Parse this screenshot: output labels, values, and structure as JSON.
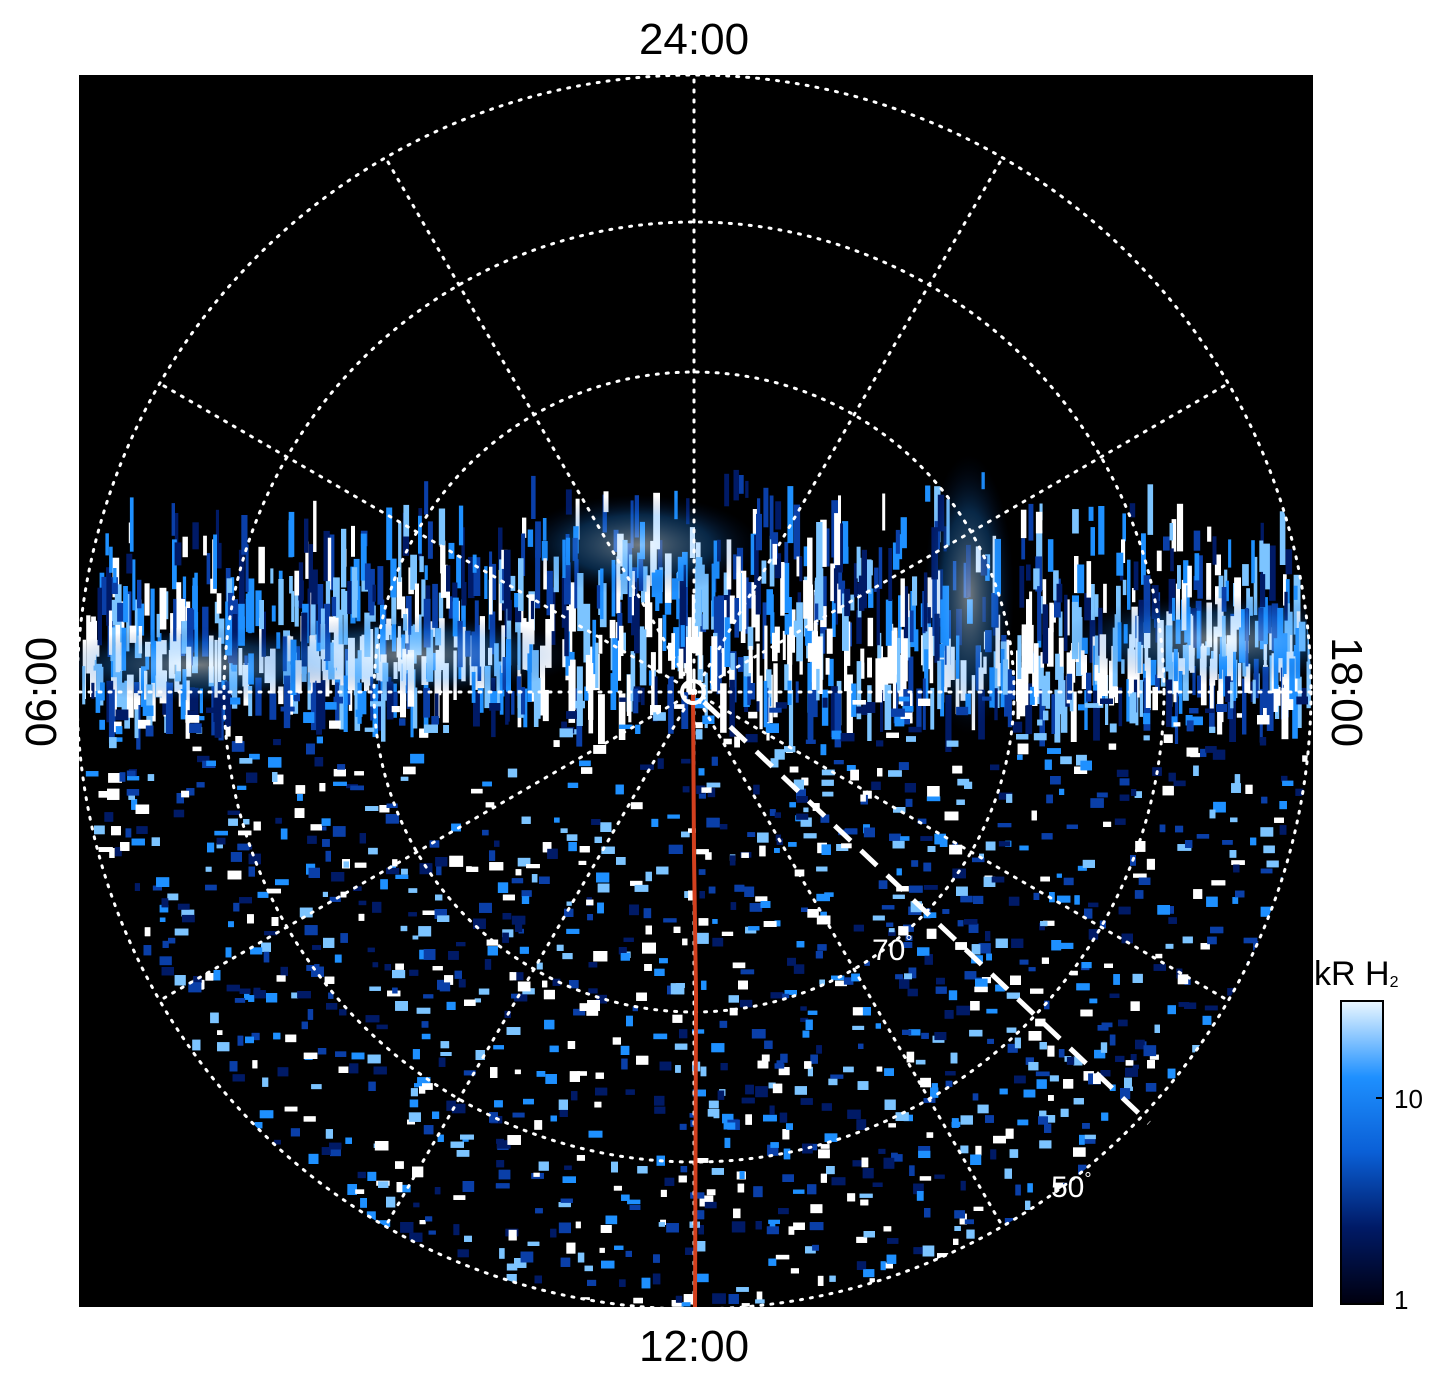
{
  "local_time_labels": {
    "top": "24:00",
    "bottom": "12:00",
    "left": "06:00",
    "right": "18:00"
  },
  "latitude_labels": {
    "inner": "70",
    "outer": "50",
    "degree_symbol": "°"
  },
  "colorbar": {
    "title_main": "kR H",
    "title_sub": "2",
    "ticks": [
      "10",
      "1"
    ],
    "scale": "log",
    "colors": [
      "#000010",
      "#001a66",
      "#0a5fd6",
      "#1e90ff",
      "#e8f6ff"
    ]
  },
  "colors": {
    "background": "#000000",
    "grid": "#ffffff",
    "meridian_line": "#d2401e",
    "emission_dark": "#001a66",
    "emission_mid": "#1e90ff",
    "emission_bright": "#ffffff"
  }
}
